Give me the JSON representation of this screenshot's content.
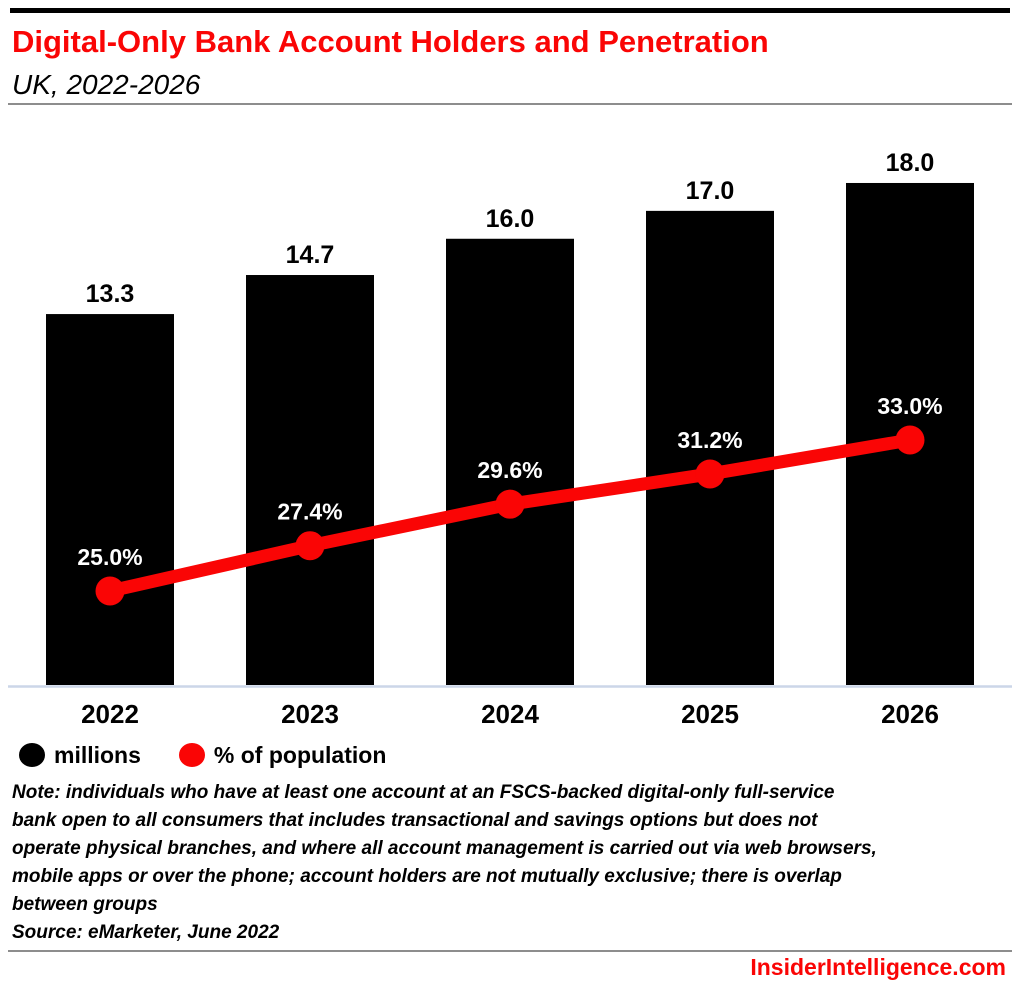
{
  "header": {
    "title": "Digital-Only Bank Account Holders and Penetration",
    "subtitle": "UK, 2022-2026"
  },
  "chart_data": {
    "type": "bar",
    "title": "Digital-Only Bank Account Holders and Penetration",
    "subtitle": "UK, 2022-2026",
    "categories": [
      "2022",
      "2023",
      "2024",
      "2025",
      "2026"
    ],
    "series": [
      {
        "name": "millions",
        "type": "bar",
        "color": "#000000",
        "values": [
          13.3,
          14.7,
          16.0,
          17.0,
          18.0
        ],
        "labels": [
          "13.3",
          "14.7",
          "16.0",
          "17.0",
          "18.0"
        ]
      },
      {
        "name": "% of population",
        "type": "line",
        "color": "#fa0505",
        "values": [
          25.0,
          27.4,
          29.6,
          31.2,
          33.0
        ],
        "labels": [
          "25.0%",
          "27.4%",
          "29.6%",
          "31.2%",
          "33.0%"
        ]
      }
    ],
    "bar_axis": {
      "min": 0,
      "max": 20.3,
      "shown": false
    },
    "pct_axis": {
      "min": 0,
      "max": 40,
      "shown": false
    },
    "grid": false,
    "legend_position": "bottom-left",
    "legend": [
      {
        "label": "millions",
        "color": "#000000"
      },
      {
        "label": "% of population",
        "color": "#fa0505"
      }
    ],
    "xlabel": "",
    "ylabel": ""
  },
  "note_lines": [
    "Note: individuals who have at least one account at an FSCS-backed digital-only full-service",
    "bank open to all consumers that includes transactional and savings options but does not",
    "operate physical branches, and where all account management is carried out via web browsers,",
    "mobile apps or over the phone; account holders are not mutually exclusive; there is overlap",
    "between groups"
  ],
  "source": "Source: eMarketer, June 2022",
  "footer": {
    "brand": "InsiderIntelligence.com"
  },
  "colors": {
    "accent_red": "#fa0505",
    "bar_black": "#000000",
    "axis_line": "#ccd6e8",
    "divider_gray": "#8d8d8d",
    "label_white": "#ffffff"
  }
}
